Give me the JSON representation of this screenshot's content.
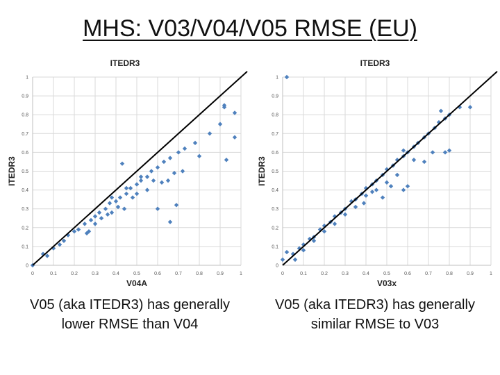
{
  "title": "MHS: V03/V04/V05 RMSE (EU)",
  "captions": {
    "left": "V05 (aka ITEDR3) has generally lower RMSE than V04",
    "right": "V05 (aka ITEDR3) has generally similar RMSE to V03"
  },
  "colors": {
    "marker": "#4f81bd",
    "diagonal": "#000000",
    "grid": "#d9d9d9"
  },
  "chart_data": [
    {
      "type": "scatter",
      "title": "ITEDR3",
      "xlabel": "V04A",
      "ylabel": "ITEDR3",
      "xlim": [
        0,
        1
      ],
      "ylim": [
        0,
        1
      ],
      "xticks": [
        "0",
        "0.1",
        "0.2",
        "0.3",
        "0.4",
        "0.5",
        "0.6",
        "0.7",
        "0.8",
        "0.9",
        "1"
      ],
      "yticks": [
        "0",
        "0.1",
        "0.2",
        "0.3",
        "0.4",
        "0.5",
        "0.6",
        "0.7",
        "0.8",
        "0.9",
        "1"
      ],
      "grid": true,
      "reference_line": "y = x",
      "x": [
        0.0,
        0.05,
        0.07,
        0.1,
        0.13,
        0.15,
        0.17,
        0.2,
        0.22,
        0.25,
        0.28,
        0.3,
        0.32,
        0.35,
        0.37,
        0.4,
        0.42,
        0.45,
        0.47,
        0.5,
        0.52,
        0.55,
        0.57,
        0.6,
        0.63,
        0.66,
        0.7,
        0.73,
        0.78,
        0.85,
        0.92,
        0.97,
        0.3,
        0.38,
        0.44,
        0.5,
        0.58,
        0.65,
        0.72,
        0.8,
        0.9,
        0.93,
        0.26,
        0.33,
        0.41,
        0.48,
        0.55,
        0.62,
        0.68,
        0.66,
        0.6,
        0.69,
        0.97,
        0.92,
        0.38,
        0.45,
        0.52,
        0.36,
        0.27,
        0.43
      ],
      "y": [
        0.0,
        0.06,
        0.05,
        0.09,
        0.11,
        0.13,
        0.16,
        0.18,
        0.19,
        0.22,
        0.24,
        0.26,
        0.28,
        0.3,
        0.33,
        0.34,
        0.36,
        0.38,
        0.41,
        0.43,
        0.45,
        0.47,
        0.5,
        0.52,
        0.55,
        0.57,
        0.6,
        0.62,
        0.65,
        0.7,
        0.85,
        0.68,
        0.22,
        0.28,
        0.3,
        0.38,
        0.45,
        0.45,
        0.5,
        0.58,
        0.75,
        0.56,
        0.17,
        0.25,
        0.31,
        0.36,
        0.4,
        0.44,
        0.49,
        0.23,
        0.3,
        0.32,
        0.81,
        0.84,
        0.36,
        0.41,
        0.47,
        0.27,
        0.18,
        0.54
      ]
    },
    {
      "type": "scatter",
      "title": "ITEDR3",
      "xlabel": "V03x",
      "ylabel": "ITEDR3",
      "xlim": [
        0,
        1
      ],
      "ylim": [
        0,
        1
      ],
      "xticks": [
        "0",
        "0.1",
        "0.2",
        "0.3",
        "0.4",
        "0.5",
        "0.6",
        "0.7",
        "0.8",
        "0.9",
        "1"
      ],
      "yticks": [
        "0",
        "0.1",
        "0.2",
        "0.3",
        "0.4",
        "0.5",
        "0.6",
        "0.7",
        "0.8",
        "0.9",
        "1"
      ],
      "grid": true,
      "reference_line": "y = x",
      "x": [
        0.0,
        0.02,
        0.05,
        0.08,
        0.1,
        0.13,
        0.15,
        0.18,
        0.2,
        0.23,
        0.25,
        0.28,
        0.3,
        0.33,
        0.35,
        0.38,
        0.4,
        0.43,
        0.45,
        0.48,
        0.5,
        0.53,
        0.55,
        0.58,
        0.6,
        0.63,
        0.65,
        0.68,
        0.7,
        0.73,
        0.75,
        0.78,
        0.8,
        0.85,
        0.9,
        0.02,
        0.6,
        0.63,
        0.8,
        0.78,
        0.76,
        0.55,
        0.52,
        0.58,
        0.48,
        0.45,
        0.35,
        0.4,
        0.3,
        0.25,
        0.2,
        0.15,
        0.1,
        0.06,
        0.72,
        0.68,
        0.5,
        0.43,
        0.39,
        0.58
      ],
      "y": [
        0.03,
        0.07,
        0.06,
        0.09,
        0.11,
        0.14,
        0.15,
        0.19,
        0.21,
        0.23,
        0.26,
        0.28,
        0.3,
        0.34,
        0.35,
        0.38,
        0.41,
        0.43,
        0.45,
        0.48,
        0.51,
        0.53,
        0.56,
        0.58,
        0.6,
        0.63,
        0.65,
        0.68,
        0.7,
        0.73,
        0.76,
        0.78,
        0.8,
        0.84,
        0.84,
        1.0,
        0.42,
        0.56,
        0.61,
        0.6,
        0.82,
        0.48,
        0.42,
        0.4,
        0.36,
        0.4,
        0.31,
        0.37,
        0.27,
        0.22,
        0.18,
        0.13,
        0.08,
        0.03,
        0.6,
        0.55,
        0.44,
        0.39,
        0.33,
        0.61
      ]
    }
  ]
}
